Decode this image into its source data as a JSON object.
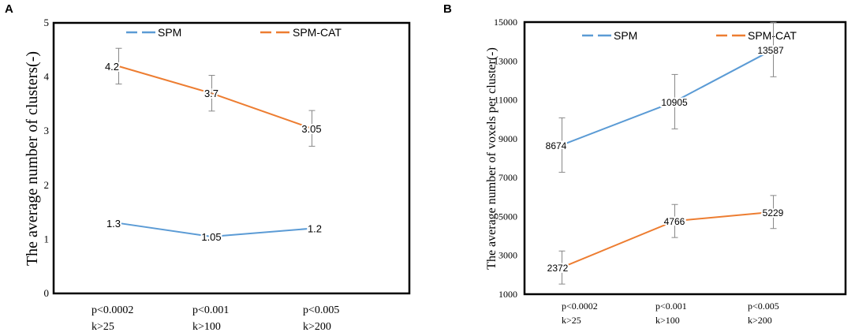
{
  "chart_data": [
    {
      "panel": "A",
      "type": "line",
      "title": "",
      "xlabel": "",
      "ylabel": "The average number of clusters(-)",
      "categories": [
        [
          "p<0.0002",
          "k>25"
        ],
        [
          "p<0.001",
          "k>100"
        ],
        [
          "p<0.005",
          "k>200"
        ]
      ],
      "ylim": [
        0,
        5
      ],
      "yticks": [
        "0",
        "1",
        "2",
        "3",
        "4",
        "5"
      ],
      "legend_position": "top",
      "series": [
        {
          "name": "SPM",
          "color": "#5b9bd5",
          "values": [
            1.3,
            1.05,
            1.2
          ],
          "labels": [
            "1.3",
            "1.05",
            "1.2"
          ],
          "errors": null
        },
        {
          "name": "SPM-CAT",
          "color": "#ed7d31",
          "values": [
            4.2,
            3.7,
            3.05
          ],
          "labels": [
            "4.2",
            "3.7",
            "3.05"
          ],
          "errors": [
            0.33,
            0.33,
            0.33
          ]
        }
      ]
    },
    {
      "panel": "B",
      "type": "line",
      "title": "",
      "xlabel": "",
      "ylabel": "The average number of  voxels per cluster(-)",
      "categories": [
        [
          "p<0.0002",
          "k>25"
        ],
        [
          "p<0.001",
          "k>100"
        ],
        [
          "p<0.005",
          "k>200"
        ]
      ],
      "ylim": [
        1000,
        15000
      ],
      "yticks": [
        "1000",
        "3000",
        "5000",
        "7000",
        "9000",
        "11000",
        "13000",
        "15000"
      ],
      "legend_position": "top",
      "series": [
        {
          "name": "SPM",
          "color": "#5b9bd5",
          "values": [
            8674,
            10905,
            13587
          ],
          "labels": [
            "8674",
            "10905",
            "13587"
          ],
          "errors": [
            1400,
            1400,
            1400
          ]
        },
        {
          "name": "SPM-CAT",
          "color": "#ed7d31",
          "values": [
            2372,
            4766,
            5229
          ],
          "labels": [
            "2372",
            "4766",
            "5229"
          ],
          "errors": [
            850,
            850,
            850
          ]
        }
      ]
    }
  ]
}
